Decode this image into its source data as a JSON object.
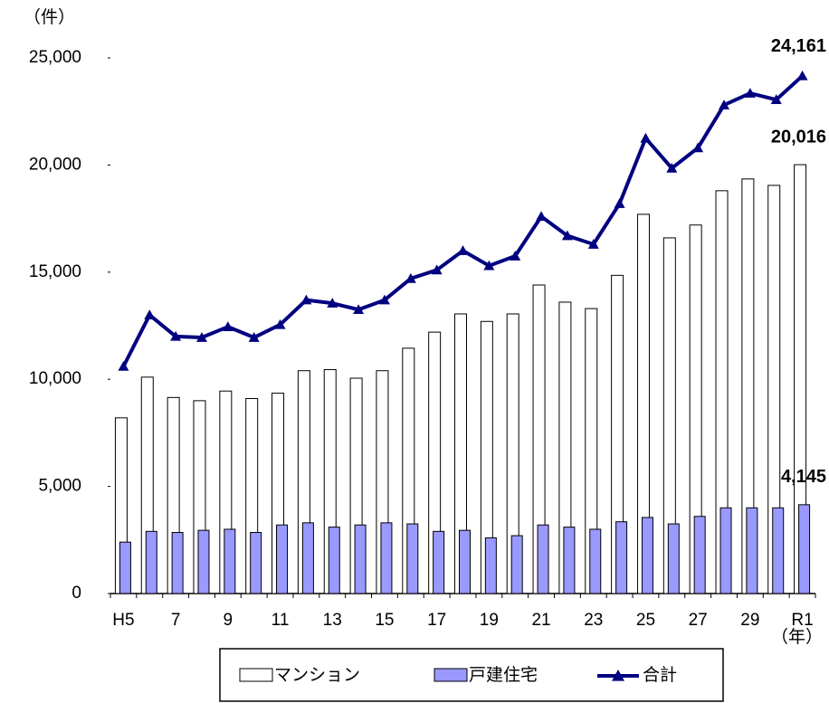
{
  "chart_data": {
    "type": "bar_line",
    "y_label": "（件）",
    "x_label": "（年）",
    "categories": [
      "H5",
      null,
      "7",
      null,
      "9",
      null,
      "11",
      null,
      "13",
      null,
      "15",
      null,
      "17",
      null,
      "19",
      null,
      "21",
      null,
      "23",
      null,
      "25",
      null,
      "27",
      null,
      "29",
      null,
      "R1"
    ],
    "series": [
      {
        "name": "マンション",
        "type": "bar",
        "color": "#ffffff",
        "values": [
          8200,
          10100,
          9150,
          9000,
          9450,
          9100,
          9350,
          10400,
          10450,
          10050,
          10400,
          11450,
          12200,
          13050,
          12700,
          13050,
          14400,
          13600,
          13300,
          14850,
          17700,
          16600,
          17200,
          18800,
          19350,
          19050,
          20016
        ],
        "value_labels": [
          null,
          null,
          null,
          null,
          null,
          null,
          null,
          null,
          null,
          null,
          null,
          null,
          null,
          null,
          null,
          null,
          null,
          null,
          null,
          null,
          null,
          null,
          null,
          null,
          null,
          null,
          "20,016"
        ]
      },
      {
        "name": "戸建住宅",
        "type": "bar",
        "color": "#9999ff",
        "values": [
          2400,
          2900,
          2850,
          2950,
          3000,
          2850,
          3200,
          3300,
          3100,
          3200,
          3300,
          3250,
          2900,
          2950,
          2600,
          2700,
          3200,
          3100,
          3000,
          3350,
          3550,
          3250,
          3600,
          4000,
          4000,
          4000,
          4145
        ],
        "value_labels": [
          null,
          null,
          null,
          null,
          null,
          null,
          null,
          null,
          null,
          null,
          null,
          null,
          null,
          null,
          null,
          null,
          null,
          null,
          null,
          null,
          null,
          null,
          null,
          null,
          null,
          null,
          "4,145"
        ]
      },
      {
        "name": "合計",
        "type": "line",
        "color": "#000080",
        "values": [
          10600,
          13000,
          12000,
          11950,
          12450,
          11950,
          12550,
          13700,
          13550,
          13250,
          13700,
          14700,
          15100,
          16000,
          15300,
          15750,
          17600,
          16700,
          16300,
          18200,
          21250,
          19850,
          20800,
          22800,
          23350,
          23050,
          24161
        ],
        "value_labels": [
          null,
          null,
          null,
          null,
          null,
          null,
          null,
          null,
          null,
          null,
          null,
          null,
          null,
          null,
          null,
          null,
          null,
          null,
          null,
          null,
          null,
          null,
          null,
          null,
          null,
          null,
          "24,161"
        ]
      }
    ],
    "ylim": [
      0,
      25000
    ],
    "yticks": [
      0,
      {
        "value": 5000,
        "label": "5,000"
      },
      {
        "value": 10000,
        "label": "10,000"
      },
      {
        "value": 15000,
        "label": "15,000"
      },
      {
        "value": 20000,
        "label": "20,000"
      },
      {
        "value": 25000,
        "label": "25,000"
      }
    ],
    "grid": false,
    "legend": "bottom"
  }
}
